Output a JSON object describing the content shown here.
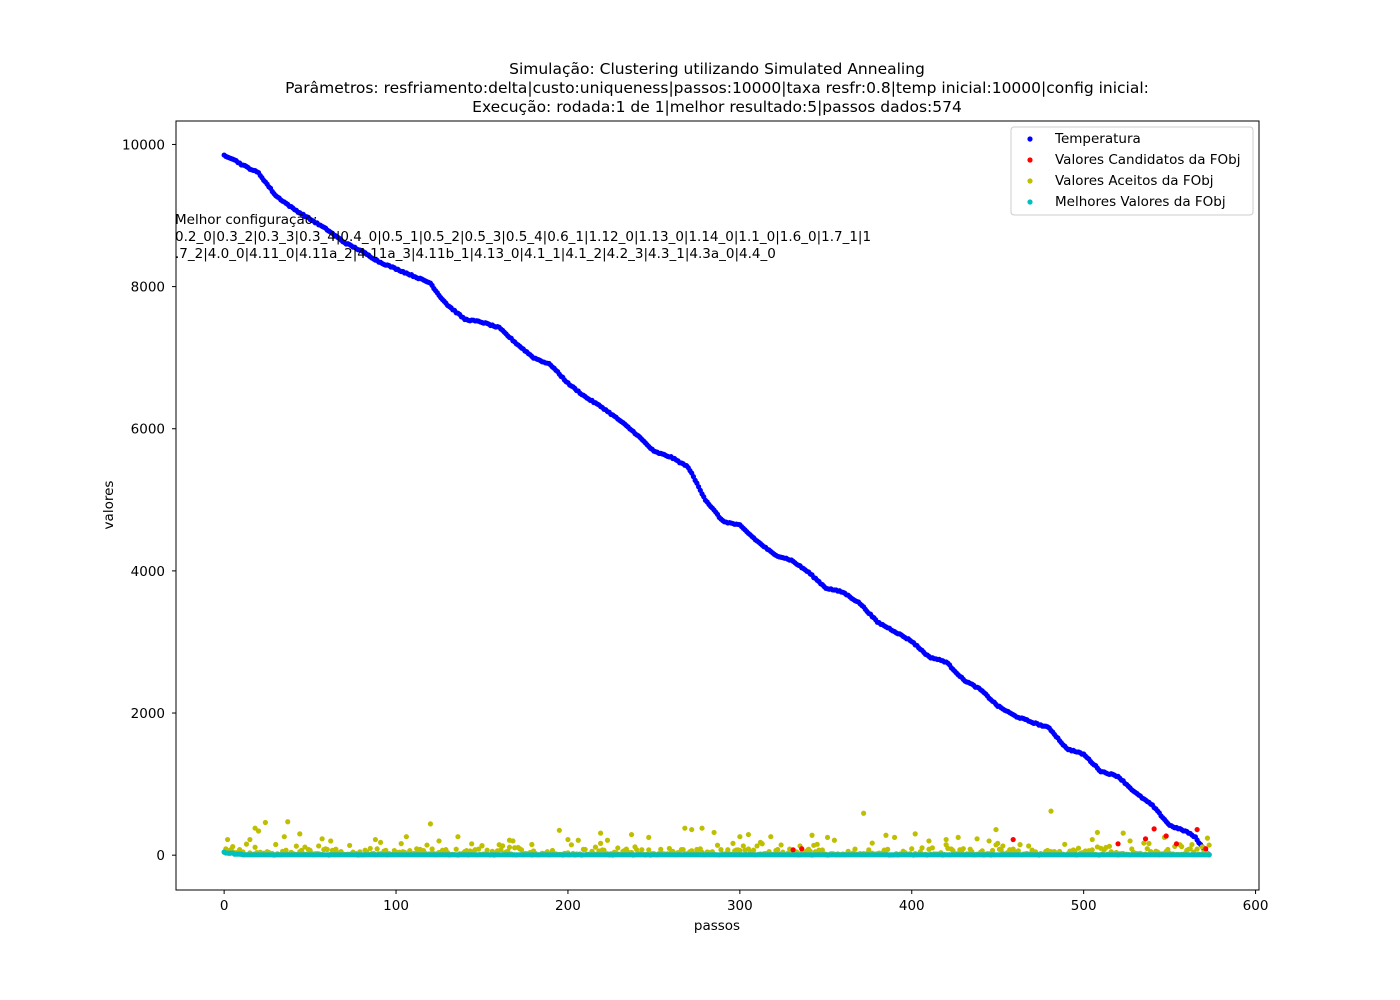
{
  "chart_data": {
    "type": "scatter",
    "title_lines": [
      "Simulação: Clustering utilizando Simulated Annealing",
      "Parâmetros: resfriamento:delta|custo:uniqueness|passos:10000|taxa resfr:0.8|temp inicial:10000|config inicial:",
      "Execução: rodada:1 de 1|melhor resultado:5|passos dados:574"
    ],
    "xlabel": "passos",
    "ylabel": "valores",
    "xlim": [
      -28,
      602
    ],
    "ylim": [
      -490,
      10330
    ],
    "xticks": [
      0,
      100,
      200,
      300,
      400,
      500,
      600
    ],
    "yticks": [
      0,
      2000,
      4000,
      6000,
      8000,
      10000
    ],
    "grid": false,
    "legend_position": "upper right",
    "annotation_lines": [
      "Melhor configuração:",
      "0.2_0|0.3_2|0.3_3|0.3_4|0.4_0|0.5_1|0.5_2|0.5_3|0.5_4|0.6_1|1.12_0|1.13_0|1.14_0|1.1_0|1.6_0|1.7_1|1",
      ".7_2|4.0_0|4.11_0|4.11a_2|4.11a_3|4.11b_1|4.13_0|4.1_1|4.1_2|4.2_3|4.3_1|4.3a_0|4.4_0"
    ],
    "series": [
      {
        "name": "Temperatura",
        "color": "#0000ff",
        "kind": "curve",
        "n_points": 574,
        "keypoints": [
          [
            0,
            9850
          ],
          [
            5,
            9800
          ],
          [
            10,
            9720
          ],
          [
            20,
            9600
          ],
          [
            30,
            9280
          ],
          [
            40,
            9100
          ],
          [
            50,
            8950
          ],
          [
            60,
            8800
          ],
          [
            70,
            8620
          ],
          [
            80,
            8500
          ],
          [
            90,
            8350
          ],
          [
            100,
            8250
          ],
          [
            110,
            8150
          ],
          [
            120,
            8050
          ],
          [
            125,
            7880
          ],
          [
            130,
            7740
          ],
          [
            140,
            7540
          ],
          [
            150,
            7500
          ],
          [
            160,
            7420
          ],
          [
            170,
            7200
          ],
          [
            180,
            7000
          ],
          [
            190,
            6900
          ],
          [
            200,
            6640
          ],
          [
            210,
            6450
          ],
          [
            220,
            6300
          ],
          [
            230,
            6120
          ],
          [
            240,
            5920
          ],
          [
            250,
            5680
          ],
          [
            260,
            5600
          ],
          [
            270,
            5460
          ],
          [
            280,
            5000
          ],
          [
            290,
            4700
          ],
          [
            300,
            4640
          ],
          [
            310,
            4420
          ],
          [
            320,
            4230
          ],
          [
            330,
            4150
          ],
          [
            340,
            3980
          ],
          [
            350,
            3760
          ],
          [
            360,
            3700
          ],
          [
            370,
            3540
          ],
          [
            380,
            3280
          ],
          [
            390,
            3150
          ],
          [
            400,
            3010
          ],
          [
            410,
            2790
          ],
          [
            420,
            2720
          ],
          [
            430,
            2470
          ],
          [
            440,
            2330
          ],
          [
            450,
            2100
          ],
          [
            460,
            1960
          ],
          [
            470,
            1870
          ],
          [
            480,
            1790
          ],
          [
            490,
            1500
          ],
          [
            500,
            1420
          ],
          [
            510,
            1180
          ],
          [
            520,
            1110
          ],
          [
            530,
            880
          ],
          [
            540,
            700
          ],
          [
            550,
            420
          ],
          [
            560,
            330
          ],
          [
            565,
            250
          ],
          [
            570,
            80
          ],
          [
            573,
            10
          ]
        ]
      },
      {
        "name": "Valores Candidatos da FObj",
        "color": "#ff0000",
        "kind": "scatter",
        "points": [
          [
            331,
            75
          ],
          [
            336,
            90
          ],
          [
            459,
            220
          ],
          [
            520,
            160
          ],
          [
            536,
            230
          ],
          [
            541,
            370
          ],
          [
            548,
            270
          ],
          [
            554,
            160
          ],
          [
            566,
            360
          ],
          [
            571,
            90
          ]
        ]
      },
      {
        "name": "Valores Aceitos da FObj",
        "color": "#bfbf00",
        "kind": "scatter",
        "n_points": 574,
        "highlights": [
          [
            2,
            220
          ],
          [
            5,
            120
          ],
          [
            15,
            220
          ],
          [
            18,
            380
          ],
          [
            20,
            340
          ],
          [
            24,
            460
          ],
          [
            30,
            150
          ],
          [
            35,
            260
          ],
          [
            37,
            470
          ],
          [
            44,
            300
          ],
          [
            55,
            130
          ],
          [
            57,
            230
          ],
          [
            62,
            200
          ],
          [
            88,
            220
          ],
          [
            91,
            180
          ],
          [
            106,
            260
          ],
          [
            120,
            440
          ],
          [
            125,
            200
          ],
          [
            136,
            260
          ],
          [
            144,
            160
          ],
          [
            150,
            130
          ],
          [
            166,
            210
          ],
          [
            168,
            200
          ],
          [
            179,
            150
          ],
          [
            195,
            350
          ],
          [
            200,
            220
          ],
          [
            206,
            210
          ],
          [
            219,
            310
          ],
          [
            223,
            210
          ],
          [
            237,
            290
          ],
          [
            247,
            250
          ],
          [
            268,
            380
          ],
          [
            272,
            360
          ],
          [
            278,
            380
          ],
          [
            285,
            320
          ],
          [
            300,
            260
          ],
          [
            305,
            290
          ],
          [
            312,
            180
          ],
          [
            318,
            260
          ],
          [
            335,
            130
          ],
          [
            342,
            280
          ],
          [
            351,
            250
          ],
          [
            355,
            210
          ],
          [
            372,
            590
          ],
          [
            377,
            170
          ],
          [
            385,
            280
          ],
          [
            390,
            250
          ],
          [
            402,
            300
          ],
          [
            410,
            200
          ],
          [
            420,
            220
          ],
          [
            427,
            250
          ],
          [
            438,
            230
          ],
          [
            445,
            200
          ],
          [
            449,
            360
          ],
          [
            453,
            130
          ],
          [
            481,
            620
          ],
          [
            505,
            220
          ],
          [
            508,
            320
          ],
          [
            523,
            310
          ],
          [
            527,
            200
          ],
          [
            535,
            170
          ],
          [
            547,
            250
          ],
          [
            557,
            120
          ],
          [
            572,
            240
          ]
        ]
      },
      {
        "name": "Melhores Valores da FObj",
        "color": "#00bfbf",
        "kind": "scatter",
        "n_points": 574,
        "start_values": [
          [
            0,
            45
          ],
          [
            5,
            30
          ],
          [
            10,
            15
          ],
          [
            15,
            5
          ]
        ],
        "final_value": 5
      }
    ]
  }
}
